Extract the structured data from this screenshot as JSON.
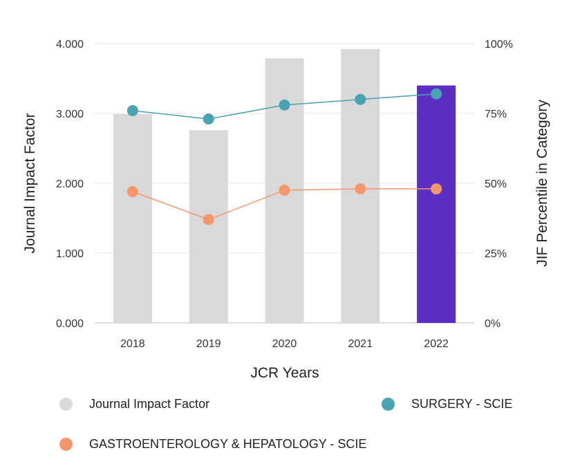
{
  "chart_data": {
    "type": "bar+line",
    "xlabel": "JCR Years",
    "ylabel_left": "Journal Impact Factor",
    "ylabel_right": "JIF Percentile in Category",
    "categories": [
      "2018",
      "2019",
      "2020",
      "2021",
      "2022"
    ],
    "ylim_left": [
      0,
      4
    ],
    "ylim_right": [
      0,
      100
    ],
    "left_ticks": [
      "0.000",
      "1.000",
      "2.000",
      "3.000",
      "4.000"
    ],
    "right_ticks": [
      "0%",
      "25%",
      "50%",
      "75%",
      "100%"
    ],
    "grid": true,
    "bars": {
      "name": "Journal Impact Factor",
      "values": [
        2.99,
        2.76,
        3.79,
        3.92,
        3.4
      ],
      "colors": [
        "#d9d9d9",
        "#d9d9d9",
        "#d9d9d9",
        "#d9d9d9",
        "#5c2fc2"
      ]
    },
    "series": [
      {
        "name": "SURGERY - SCIE",
        "values": [
          76,
          73,
          78,
          80,
          82
        ],
        "color": "#4aa3b3"
      },
      {
        "name": "GASTROENTEROLOGY & HEPATOLOGY - SCIE",
        "values": [
          47,
          37,
          47.5,
          48,
          48
        ],
        "color": "#f4976c"
      }
    ]
  },
  "legend": [
    {
      "label": "Journal Impact Factor",
      "color": "#d9d9d9"
    },
    {
      "label": "SURGERY - SCIE",
      "color": "#4aa3b3"
    },
    {
      "label": "GASTROENTEROLOGY & HEPATOLOGY - SCIE",
      "color": "#f4976c"
    }
  ]
}
